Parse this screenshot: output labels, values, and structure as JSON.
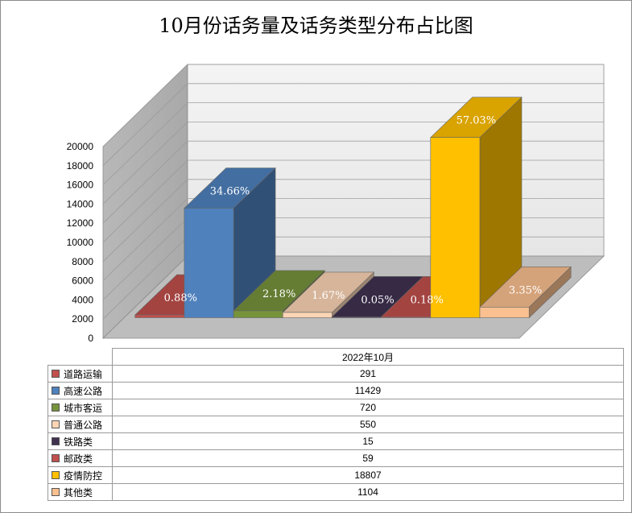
{
  "chart_data": {
    "type": "bar",
    "title": "10月份话务量及话务类型分布占比图",
    "categories": [
      "2022年10月"
    ],
    "ylim": [
      0,
      20000
    ],
    "yticks": [
      "0",
      "2000",
      "4000",
      "6000",
      "8000",
      "10000",
      "12000",
      "14000",
      "16000",
      "18000",
      "20000"
    ],
    "grid": true,
    "legend": "table-below",
    "series": [
      {
        "name": "道路运输",
        "value": 291,
        "display": "291",
        "label": "0.88%",
        "color": "#c0504d"
      },
      {
        "name": "高速公路",
        "value": 11429,
        "display": "11429",
        "label": "34.66%",
        "color": "#4f81bd"
      },
      {
        "name": "城市客运",
        "value": 720,
        "display": "720",
        "label": "2.18%",
        "color": "#77933c"
      },
      {
        "name": "普通公路",
        "value": 550,
        "display": "550",
        "label": "1.67%",
        "color": "#fcd5b5"
      },
      {
        "name": "铁路类",
        "value": 15,
        "display": "15",
        "label": "0.05%",
        "color": "#403151"
      },
      {
        "name": "邮政类",
        "value": 59,
        "display": "59",
        "label": "0.18%",
        "color": "#c0504d"
      },
      {
        "name": "疫情防控",
        "value": 18807,
        "display": "18807",
        "label": "57.03%",
        "color": "#ffc000"
      },
      {
        "name": "其他类",
        "value": 1104,
        "display": "1104",
        "label": "3.35%",
        "color": "#fac090"
      }
    ]
  }
}
